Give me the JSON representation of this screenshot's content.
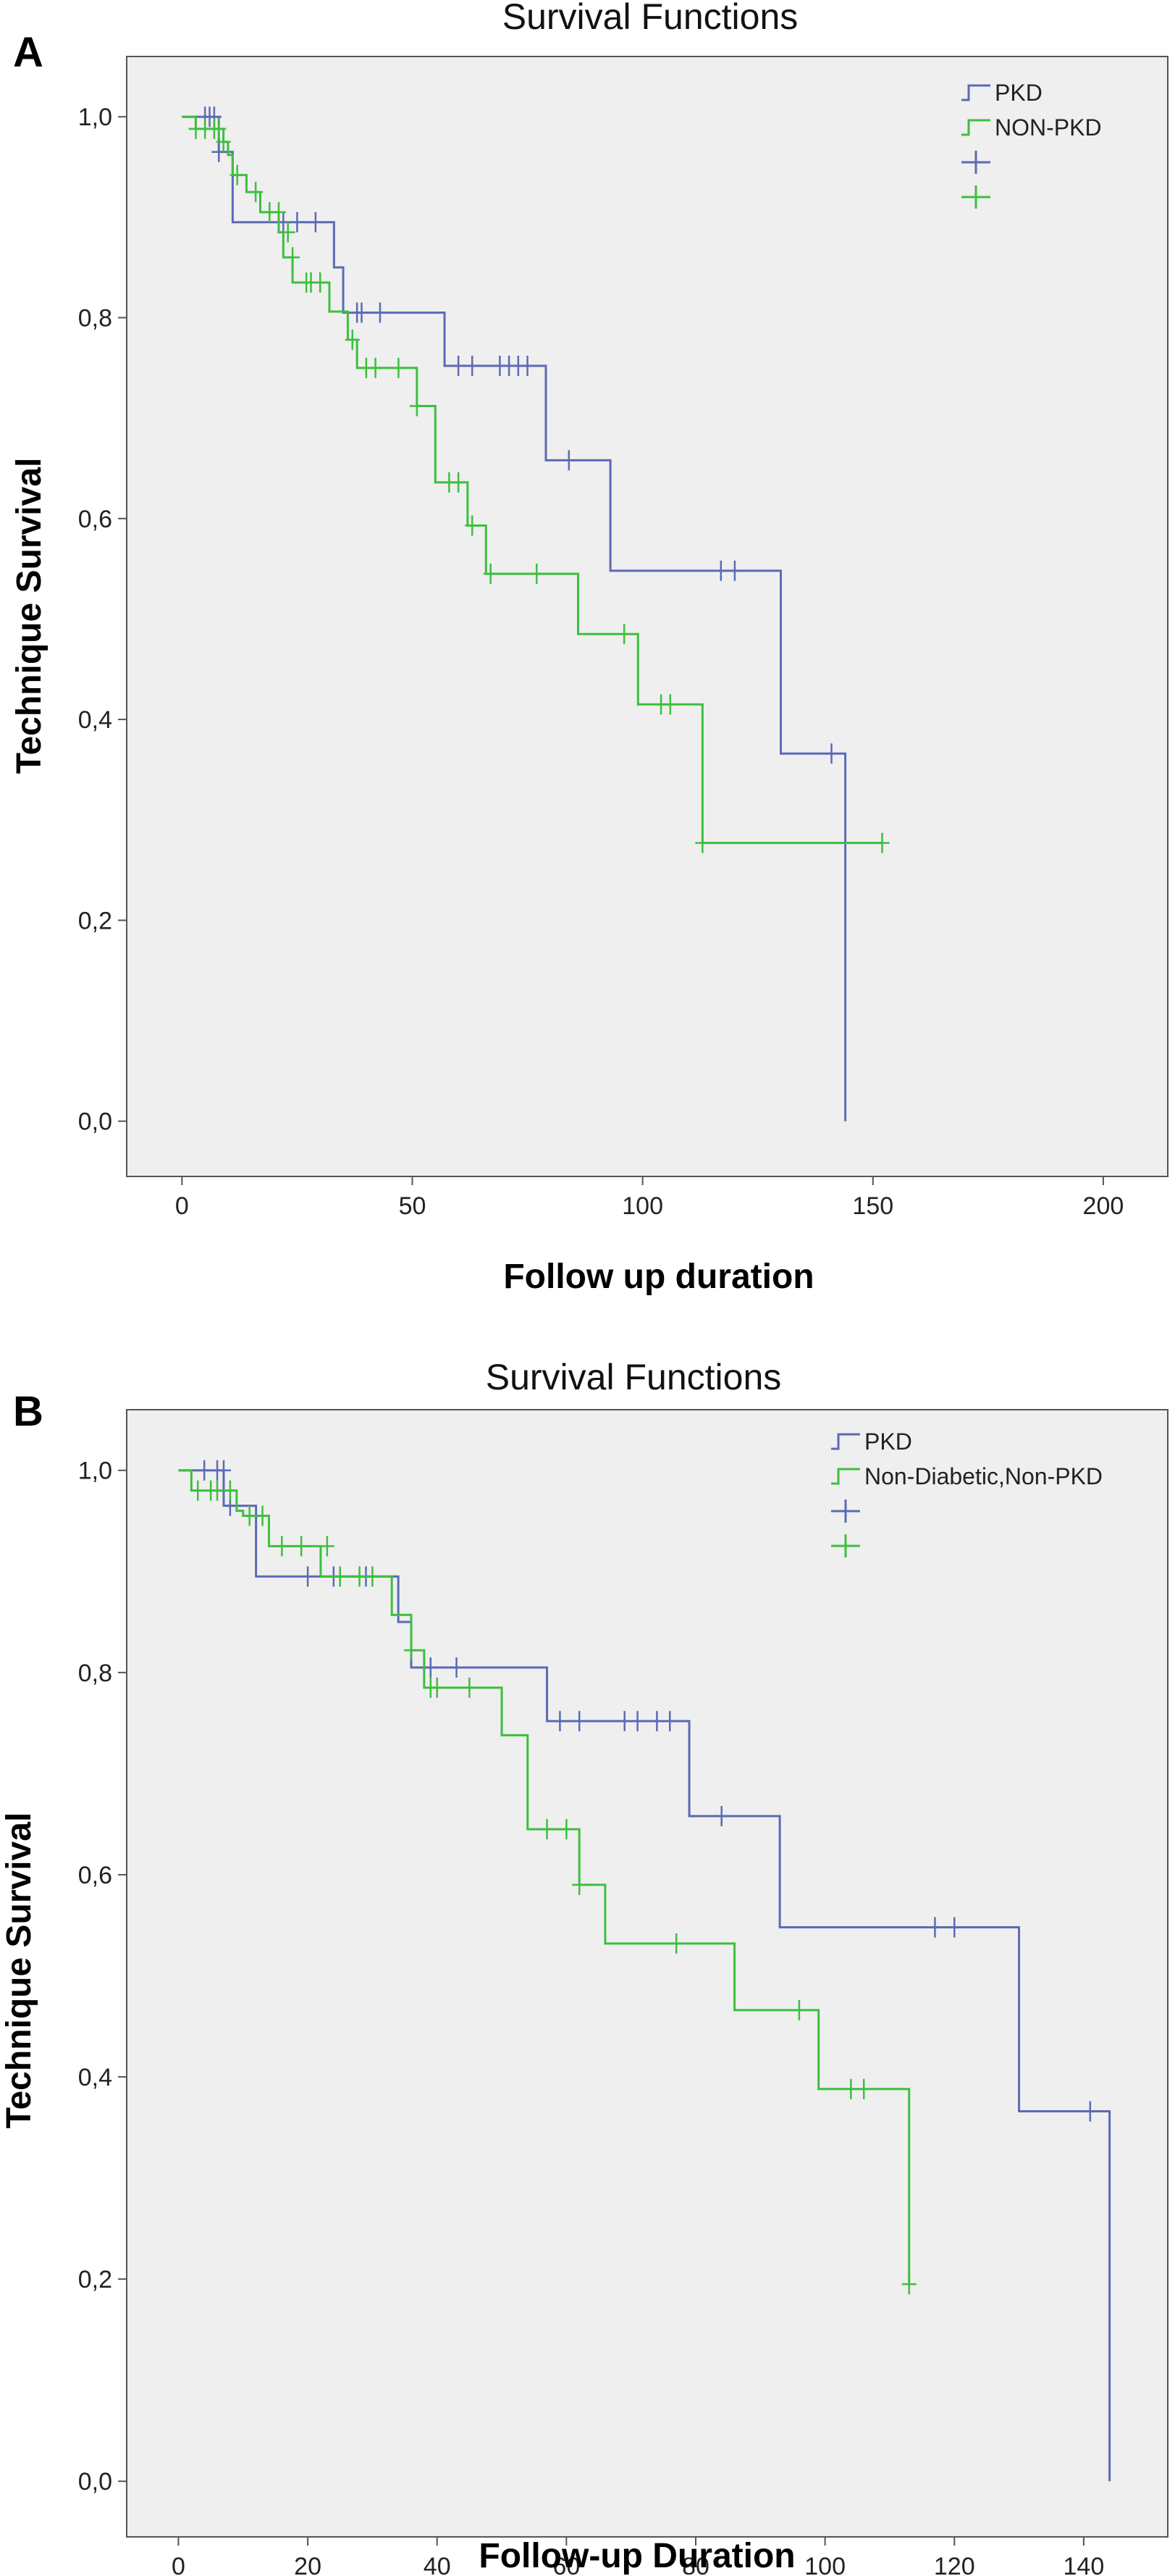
{
  "chart_data": [
    {
      "type": "line",
      "panel_label": "A",
      "title": "Survival Functions",
      "xlabel": "Follow up duration",
      "ylabel": "Technique Survival",
      "xlim": [
        -12,
        214
      ],
      "ylim": [
        -0.055,
        1.06
      ],
      "xticks": [
        "0",
        "50",
        "100",
        "150",
        "200"
      ],
      "xtick_values": [
        0,
        50,
        100,
        150,
        200
      ],
      "yticks": [
        "0,0",
        "0,2",
        "0,4",
        "0,6",
        "0,8",
        "1,0"
      ],
      "ytick_values": [
        0,
        0.2,
        0.4,
        0.6,
        0.8,
        1.0
      ],
      "legend": [
        "PKD",
        "NON-PKD",
        "",
        ""
      ],
      "legend_position": "top-right",
      "background": "#efefef",
      "series": [
        {
          "name": "PKD",
          "color": "#5b6ab5",
          "steps": [
            [
              0,
              1.0
            ],
            [
              8,
              0.965
            ],
            [
              11,
              0.895
            ],
            [
              33,
              0.85
            ],
            [
              35,
              0.805
            ],
            [
              57,
              0.752
            ],
            [
              79,
              0.658
            ],
            [
              93,
              0.548
            ],
            [
              130,
              0.366
            ],
            [
              144,
              0.0
            ]
          ],
          "censored": [
            [
              5,
              1.0
            ],
            [
              6,
              1.0
            ],
            [
              7,
              1.0
            ],
            [
              8,
              0.965
            ],
            [
              22,
              0.895
            ],
            [
              25,
              0.895
            ],
            [
              29,
              0.895
            ],
            [
              38,
              0.805
            ],
            [
              39,
              0.805
            ],
            [
              43,
              0.805
            ],
            [
              60,
              0.752
            ],
            [
              63,
              0.752
            ],
            [
              69,
              0.752
            ],
            [
              71,
              0.752
            ],
            [
              73,
              0.752
            ],
            [
              75,
              0.752
            ],
            [
              84,
              0.658
            ],
            [
              117,
              0.548
            ],
            [
              120,
              0.548
            ],
            [
              141,
              0.366
            ]
          ]
        },
        {
          "name": "NON-PKD",
          "color": "#3dbf3d",
          "steps": [
            [
              0,
              1.0
            ],
            [
              3,
              0.988
            ],
            [
              9,
              0.975
            ],
            [
              10,
              0.962
            ],
            [
              11,
              0.942
            ],
            [
              14,
              0.925
            ],
            [
              17,
              0.905
            ],
            [
              21,
              0.885
            ],
            [
              22,
              0.86
            ],
            [
              24,
              0.835
            ],
            [
              32,
              0.806
            ],
            [
              36,
              0.778
            ],
            [
              38,
              0.75
            ],
            [
              51,
              0.712
            ],
            [
              55,
              0.636
            ],
            [
              62,
              0.593
            ],
            [
              66,
              0.545
            ],
            [
              86,
              0.485
            ],
            [
              99,
              0.415
            ],
            [
              113,
              0.277
            ],
            [
              152,
              0.277
            ]
          ],
          "censored": [
            [
              3,
              0.988
            ],
            [
              5,
              0.988
            ],
            [
              7,
              0.988
            ],
            [
              8,
              0.988
            ],
            [
              9,
              0.975
            ],
            [
              12,
              0.942
            ],
            [
              16,
              0.925
            ],
            [
              19,
              0.905
            ],
            [
              21,
              0.905
            ],
            [
              23,
              0.885
            ],
            [
              24,
              0.86
            ],
            [
              27,
              0.835
            ],
            [
              28,
              0.835
            ],
            [
              30,
              0.835
            ],
            [
              37,
              0.778
            ],
            [
              40,
              0.75
            ],
            [
              42,
              0.75
            ],
            [
              47,
              0.75
            ],
            [
              51,
              0.712
            ],
            [
              58,
              0.636
            ],
            [
              60,
              0.636
            ],
            [
              63,
              0.593
            ],
            [
              67,
              0.545
            ],
            [
              77,
              0.545
            ],
            [
              96,
              0.485
            ],
            [
              104,
              0.415
            ],
            [
              106,
              0.415
            ],
            [
              113,
              0.277
            ],
            [
              152,
              0.277
            ]
          ]
        }
      ]
    },
    {
      "type": "line",
      "panel_label": "B",
      "title": "Survival Functions",
      "xlabel": "Follow-up Duration",
      "ylabel": "Technique Survival",
      "xlim": [
        -8,
        153
      ],
      "ylim": [
        -0.055,
        1.06
      ],
      "xticks": [
        "0",
        "20",
        "40",
        "60",
        "80",
        "100",
        "120",
        "140"
      ],
      "xtick_values": [
        0,
        20,
        40,
        60,
        80,
        100,
        120,
        140
      ],
      "yticks": [
        "0,0",
        "0,2",
        "0,4",
        "0,6",
        "0,8",
        "1,0"
      ],
      "ytick_values": [
        0,
        0.2,
        0.4,
        0.6,
        0.8,
        1.0
      ],
      "legend": [
        "PKD",
        "Non-Diabetic,Non-PKD",
        "",
        ""
      ],
      "legend_position": "top-right",
      "background": "#efefef",
      "series": [
        {
          "name": "PKD",
          "color": "#5b6ab5",
          "steps": [
            [
              0,
              1.0
            ],
            [
              7,
              0.965
            ],
            [
              12,
              0.895
            ],
            [
              34,
              0.85
            ],
            [
              36,
              0.805
            ],
            [
              57,
              0.752
            ],
            [
              79,
              0.658
            ],
            [
              93,
              0.548
            ],
            [
              130,
              0.366
            ],
            [
              144,
              0.0
            ]
          ],
          "censored": [
            [
              4,
              1.0
            ],
            [
              6,
              1.0
            ],
            [
              7,
              1.0
            ],
            [
              8,
              0.965
            ],
            [
              20,
              0.895
            ],
            [
              24,
              0.895
            ],
            [
              29,
              0.895
            ],
            [
              38,
              0.805
            ],
            [
              39,
              0.805
            ],
            [
              43,
              0.805
            ],
            [
              59,
              0.752
            ],
            [
              62,
              0.752
            ],
            [
              69,
              0.752
            ],
            [
              71,
              0.752
            ],
            [
              74,
              0.752
            ],
            [
              76,
              0.752
            ],
            [
              84,
              0.658
            ],
            [
              117,
              0.548
            ],
            [
              120,
              0.548
            ],
            [
              141,
              0.366
            ]
          ]
        },
        {
          "name": "Non-Diabetic,Non-PKD",
          "color": "#3dbf3d",
          "steps": [
            [
              0,
              1.0
            ],
            [
              2,
              0.98
            ],
            [
              9,
              0.96
            ],
            [
              10,
              0.955
            ],
            [
              14,
              0.925
            ],
            [
              22,
              0.895
            ],
            [
              33,
              0.857
            ],
            [
              36,
              0.822
            ],
            [
              38,
              0.785
            ],
            [
              50,
              0.738
            ],
            [
              54,
              0.645
            ],
            [
              62,
              0.59
            ],
            [
              66,
              0.532
            ],
            [
              86,
              0.466
            ],
            [
              99,
              0.388
            ],
            [
              113,
              0.195
            ]
          ],
          "censored": [
            [
              3,
              0.98
            ],
            [
              5,
              0.98
            ],
            [
              6,
              0.98
            ],
            [
              8,
              0.98
            ],
            [
              11,
              0.955
            ],
            [
              13,
              0.955
            ],
            [
              16,
              0.925
            ],
            [
              19,
              0.925
            ],
            [
              23,
              0.925
            ],
            [
              25,
              0.895
            ],
            [
              28,
              0.895
            ],
            [
              30,
              0.895
            ],
            [
              36,
              0.822
            ],
            [
              39,
              0.785
            ],
            [
              40,
              0.785
            ],
            [
              45,
              0.785
            ],
            [
              57,
              0.645
            ],
            [
              60,
              0.645
            ],
            [
              62,
              0.59
            ],
            [
              77,
              0.532
            ],
            [
              96,
              0.466
            ],
            [
              104,
              0.388
            ],
            [
              106,
              0.388
            ],
            [
              113,
              0.195
            ]
          ]
        }
      ]
    }
  ]
}
